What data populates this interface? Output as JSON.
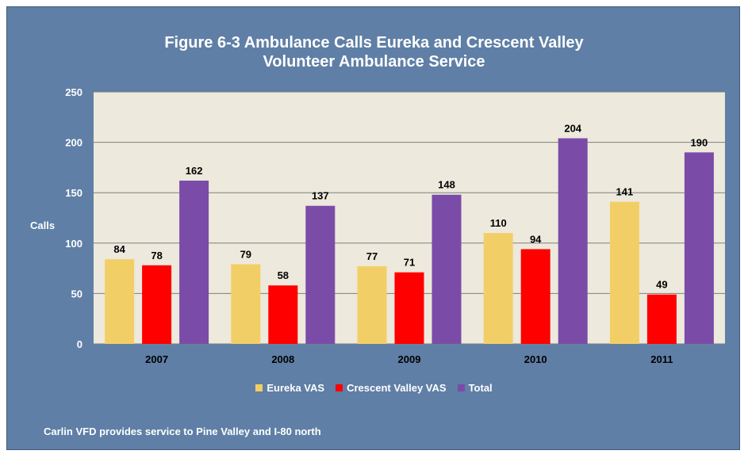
{
  "chart_data": {
    "type": "bar",
    "title": "Figure 6-3 Ambulance Calls Eureka and Crescent Valley",
    "subtitle": "Volunteer Ambulance Service",
    "ylabel": "Calls",
    "xlabel": "",
    "ylim": [
      0,
      250
    ],
    "yticks": [
      0,
      50,
      100,
      150,
      200,
      250
    ],
    "grid": true,
    "legend_position": "bottom",
    "categories": [
      "2007",
      "2008",
      "2009",
      "2010",
      "2011"
    ],
    "series": [
      {
        "name": "Eureka VAS",
        "color": "#f2cf66",
        "values": [
          84,
          79,
          77,
          110,
          141
        ]
      },
      {
        "name": "Crescent Valley VAS",
        "color": "#ff0000",
        "values": [
          78,
          58,
          71,
          94,
          49
        ]
      },
      {
        "name": "Total",
        "color": "#7a4ca8",
        "values": [
          162,
          137,
          148,
          204,
          190
        ]
      }
    ],
    "footnote": "Carlin VFD provides service to Pine Valley and I-80 north"
  },
  "colors": {
    "frame_bg": "#5f7fa6",
    "plot_bg": "#ede9dc",
    "gridline": "#7f7f7f"
  }
}
